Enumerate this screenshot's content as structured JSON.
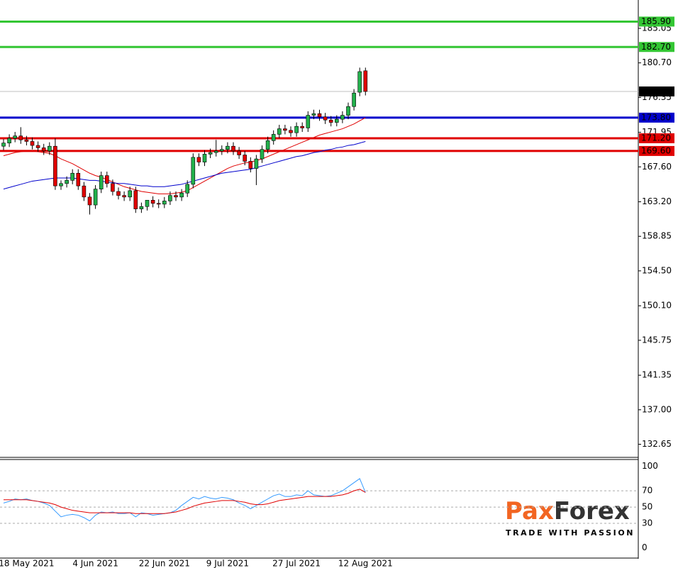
{
  "chart_data": [
    {
      "type": "candlestick",
      "categories": [
        null,
        null,
        null,
        null,
        "18 May 2021",
        null,
        null,
        null,
        null,
        null,
        null,
        null,
        null,
        null,
        null,
        null,
        "4 Jun 2021",
        null,
        null,
        null,
        null,
        null,
        null,
        null,
        null,
        null,
        null,
        null,
        "22 Jun 2021",
        null,
        null,
        null,
        null,
        null,
        null,
        null,
        null,
        null,
        null,
        "9 Jul 2021",
        null,
        null,
        null,
        null,
        null,
        null,
        null,
        null,
        null,
        null,
        null,
        "27 Jul 2021",
        null,
        null,
        null,
        null,
        null,
        null,
        null,
        null,
        null,
        null,
        null,
        "12 Aug 2021"
      ],
      "open": [
        170.2,
        170.6,
        171.2,
        171.5,
        171.0,
        170.8,
        170.3,
        170.0,
        169.6,
        170.2,
        165.2,
        165.5,
        165.9,
        166.8,
        165.2,
        163.8,
        162.8,
        164.8,
        166.5,
        165.5,
        164.5,
        164.0,
        163.8,
        164.6,
        162.3,
        162.6,
        163.4,
        163.0,
        162.9,
        163.3,
        164.0,
        163.8,
        164.3,
        165.4,
        168.8,
        168.2,
        169.2,
        169.4,
        169.6,
        169.8,
        170.2,
        169.6,
        169.1,
        168.3,
        167.4,
        168.6,
        169.8,
        170.9,
        171.7,
        172.4,
        172.2,
        171.9,
        172.7,
        172.5,
        174.1,
        174.3,
        173.9,
        173.5,
        173.2,
        173.6,
        174.1,
        175.2,
        177.0,
        179.7
      ],
      "high": [
        171.1,
        171.7,
        172.0,
        172.6,
        171.5,
        171.3,
        170.8,
        170.5,
        170.7,
        171.2,
        165.9,
        166.4,
        167.3,
        167.3,
        165.7,
        164.3,
        165.3,
        167.0,
        167.0,
        166.0,
        165.0,
        164.5,
        165.1,
        165.1,
        163.1,
        163.1,
        163.9,
        163.5,
        163.8,
        164.5,
        164.5,
        164.8,
        165.9,
        169.3,
        169.3,
        169.7,
        169.9,
        171.0,
        170.3,
        170.7,
        170.7,
        170.1,
        169.6,
        168.8,
        169.1,
        170.3,
        171.4,
        172.2,
        172.9,
        172.9,
        172.7,
        173.2,
        173.2,
        174.6,
        174.8,
        174.8,
        174.4,
        174.0,
        174.1,
        174.6,
        175.7,
        177.4,
        180.1,
        180.1
      ],
      "low": [
        169.7,
        170.1,
        170.7,
        170.5,
        170.3,
        169.8,
        169.5,
        169.1,
        169.1,
        164.7,
        164.7,
        165.0,
        165.4,
        164.7,
        163.3,
        161.6,
        162.3,
        164.3,
        165.0,
        164.0,
        163.5,
        163.3,
        163.3,
        161.8,
        161.8,
        162.1,
        162.5,
        162.4,
        162.4,
        162.8,
        163.3,
        163.3,
        163.8,
        164.9,
        167.7,
        167.7,
        168.7,
        168.9,
        169.1,
        169.3,
        169.1,
        168.6,
        167.8,
        166.9,
        165.3,
        168.1,
        169.3,
        170.4,
        171.2,
        171.7,
        171.4,
        171.4,
        172.0,
        172.0,
        173.6,
        173.4,
        173.0,
        172.7,
        172.7,
        173.1,
        173.6,
        174.7,
        176.5,
        176.6
      ],
      "close": [
        170.6,
        171.2,
        171.5,
        171.0,
        170.8,
        170.3,
        170.0,
        169.6,
        170.2,
        165.2,
        165.5,
        165.9,
        166.8,
        165.2,
        163.8,
        162.8,
        164.8,
        166.5,
        165.5,
        164.5,
        164.0,
        163.8,
        164.6,
        162.3,
        162.6,
        163.4,
        163.0,
        162.9,
        163.3,
        164.0,
        163.8,
        164.3,
        165.4,
        168.8,
        168.2,
        169.2,
        169.4,
        169.6,
        169.8,
        170.2,
        169.6,
        169.1,
        168.3,
        167.4,
        168.6,
        169.8,
        170.9,
        171.7,
        172.4,
        172.2,
        171.9,
        172.7,
        172.5,
        174.1,
        174.3,
        173.9,
        173.5,
        173.2,
        173.6,
        174.1,
        175.2,
        176.9,
        179.6,
        177.1
      ],
      "up_color": "#22b14c",
      "down_color": "#e00000",
      "series": [
        {
          "color": "#e00000",
          "values": [
            169.0,
            169.2,
            169.4,
            169.5,
            169.6,
            169.6,
            169.5,
            169.4,
            169.3,
            169.0,
            168.6,
            168.3,
            168.0,
            167.6,
            167.2,
            166.8,
            166.5,
            166.3,
            166.0,
            165.7,
            165.4,
            165.1,
            164.9,
            164.7,
            164.5,
            164.4,
            164.3,
            164.2,
            164.2,
            164.2,
            164.3,
            164.4,
            164.6,
            165.0,
            165.4,
            165.8,
            166.2,
            166.6,
            167.0,
            167.4,
            167.7,
            167.9,
            168.1,
            168.2,
            168.4,
            168.6,
            168.9,
            169.2,
            169.5,
            169.8,
            170.1,
            170.4,
            170.7,
            171.0,
            171.3,
            171.6,
            171.8,
            172.0,
            172.2,
            172.4,
            172.7,
            173.0,
            173.4,
            173.8
          ]
        },
        {
          "color": "#0000cc",
          "values": [
            164.8,
            165.0,
            165.2,
            165.4,
            165.6,
            165.8,
            165.9,
            166.0,
            166.1,
            166.2,
            166.2,
            166.2,
            166.2,
            166.1,
            166.0,
            165.9,
            165.9,
            165.8,
            165.7,
            165.6,
            165.5,
            165.5,
            165.4,
            165.3,
            165.2,
            165.2,
            165.1,
            165.1,
            165.1,
            165.2,
            165.3,
            165.4,
            165.6,
            165.8,
            166.0,
            166.2,
            166.4,
            166.6,
            166.8,
            166.9,
            167.0,
            167.1,
            167.2,
            167.3,
            167.5,
            167.7,
            167.9,
            168.1,
            168.3,
            168.5,
            168.7,
            168.9,
            169.0,
            169.2,
            169.4,
            169.5,
            169.7,
            169.8,
            170.0,
            170.1,
            170.3,
            170.4,
            170.6,
            170.8
          ]
        }
      ],
      "levels": {
        "values": [
          185.9,
          182.7,
          173.8,
          171.2,
          169.6
        ],
        "value_labels": [
          "185.90",
          "182.70",
          "173.80",
          "171.20",
          "169.60"
        ],
        "colors": [
          "#33c633",
          "#33c633",
          "#0000cc",
          "#e00000",
          "#e00000"
        ]
      },
      "last_price": {
        "value": 177.1,
        "label": "177.10"
      },
      "ylim": [
        131.0,
        188.62
      ],
      "yticks": [
        185.05,
        {
          "value": 180.7,
          "label": "180.70"
        },
        176.35,
        171.95,
        {
          "value": 167.6,
          "label": "167.60"
        },
        {
          "value": 163.2,
          "label": "163.20"
        },
        158.85,
        {
          "value": 154.5,
          "label": "154.50"
        },
        {
          "value": 150.1,
          "label": "150.10"
        },
        145.75,
        141.35,
        {
          "value": 137,
          "label": "137.00"
        },
        132.65
      ]
    },
    {
      "type": "line",
      "series": [
        {
          "color": "#3399ff",
          "values": [
            55,
            57,
            60,
            59,
            60,
            58,
            57,
            55,
            52,
            45,
            38,
            40,
            41,
            40,
            37,
            33,
            40,
            44,
            43,
            44,
            42,
            42,
            43,
            38,
            43,
            42,
            40,
            41,
            42,
            43,
            46,
            52,
            57,
            62,
            60,
            63,
            61,
            60,
            62,
            61,
            59,
            55,
            52,
            48,
            52,
            56,
            60,
            64,
            66,
            63,
            63,
            65,
            64,
            70,
            65,
            64,
            63,
            64,
            67,
            70,
            75,
            80,
            85,
            68
          ]
        },
        {
          "color": "#e00000",
          "values": [
            59,
            59,
            59,
            59,
            59,
            58,
            57,
            56,
            55,
            53,
            50,
            48,
            46,
            45,
            44,
            43,
            43,
            43,
            43,
            43,
            43,
            43,
            43,
            42,
            42,
            42,
            42,
            42,
            42,
            43,
            44,
            46,
            48,
            51,
            53,
            55,
            56,
            57,
            58,
            58,
            58,
            57,
            56,
            54,
            53,
            53,
            54,
            56,
            58,
            59,
            60,
            61,
            62,
            63,
            63,
            63,
            63,
            63,
            64,
            65,
            67,
            70,
            72,
            68
          ]
        }
      ],
      "ylim": [
        -12.7,
        108.5
      ],
      "yticks": [
        100,
        70,
        50,
        30,
        0
      ]
    }
  ],
  "logo": {
    "name_parts": [
      "Pa",
      "x",
      "Forex"
    ],
    "tagline": "TRADE WITH PASSION"
  }
}
